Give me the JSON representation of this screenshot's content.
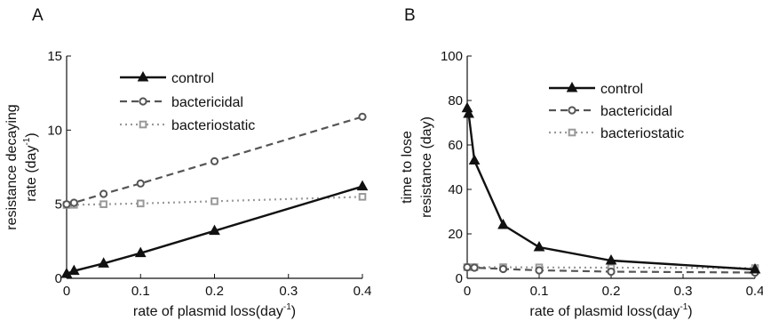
{
  "chart_data": [
    {
      "panel": "A",
      "type": "line",
      "xlabel": "rate of plasmid loss(day",
      "xlabel_sup": "-1",
      "xlabel_end": ")",
      "ylabel_line1": "resistance decaying",
      "ylabel_line2": "rate (day",
      "ylabel_sup": "-1",
      "ylabel_end": ")",
      "xlim": [
        0,
        0.4
      ],
      "ylim": [
        0,
        15
      ],
      "xticks": [
        "0",
        "0.1",
        "0.2",
        "0.3",
        "0.4"
      ],
      "yticks": [
        "0",
        "5",
        "10",
        "15"
      ],
      "legend": "top-left",
      "series": [
        {
          "name": "control",
          "color": "#111111",
          "style": "solid",
          "marker": "triangle",
          "x": [
            0,
            0.01,
            0.05,
            0.1,
            0.2,
            0.4
          ],
          "y": [
            0.3,
            0.5,
            1.0,
            1.7,
            3.2,
            6.2
          ]
        },
        {
          "name": "bactericidal",
          "color": "#555555",
          "style": "dashed",
          "marker": "circle",
          "x": [
            0,
            0.01,
            0.05,
            0.1,
            0.2,
            0.4
          ],
          "y": [
            5.0,
            5.1,
            5.7,
            6.4,
            7.9,
            10.9
          ]
        },
        {
          "name": "bacteriostatic",
          "color": "#999999",
          "style": "dotted",
          "marker": "square",
          "x": [
            0,
            0.01,
            0.05,
            0.1,
            0.2,
            0.4
          ],
          "y": [
            4.95,
            4.96,
            5.0,
            5.05,
            5.2,
            5.5
          ]
        }
      ]
    },
    {
      "panel": "B",
      "type": "line",
      "xlabel": "rate of plasmid loss(day",
      "xlabel_sup": "-1",
      "xlabel_end": ")",
      "ylabel_line1": "time to lose",
      "ylabel_line2": "resistance (day)",
      "xlim": [
        0,
        0.4
      ],
      "ylim": [
        0,
        100
      ],
      "xticks": [
        "0",
        "0.1",
        "0.2",
        "0.3",
        "0.4"
      ],
      "yticks": [
        "0",
        "20",
        "40",
        "60",
        "80",
        "100"
      ],
      "legend": "top-right",
      "series": [
        {
          "name": "control",
          "color": "#111111",
          "style": "solid",
          "marker": "triangle",
          "x": [
            0,
            0.002,
            0.01,
            0.05,
            0.1,
            0.2,
            0.4
          ],
          "y": [
            76.5,
            74,
            53,
            24,
            14,
            8,
            4
          ]
        },
        {
          "name": "bactericidal",
          "color": "#555555",
          "style": "dashed",
          "marker": "circle",
          "x": [
            0,
            0.01,
            0.05,
            0.1,
            0.2,
            0.4
          ],
          "y": [
            5,
            4.8,
            4.2,
            3.6,
            3.0,
            2.6
          ]
        },
        {
          "name": "bacteriostatic",
          "color": "#999999",
          "style": "dotted",
          "marker": "square",
          "x": [
            0,
            0.01,
            0.05,
            0.1,
            0.2,
            0.4
          ],
          "y": [
            5,
            5,
            5,
            4.9,
            4.8,
            4.6
          ]
        }
      ]
    }
  ]
}
